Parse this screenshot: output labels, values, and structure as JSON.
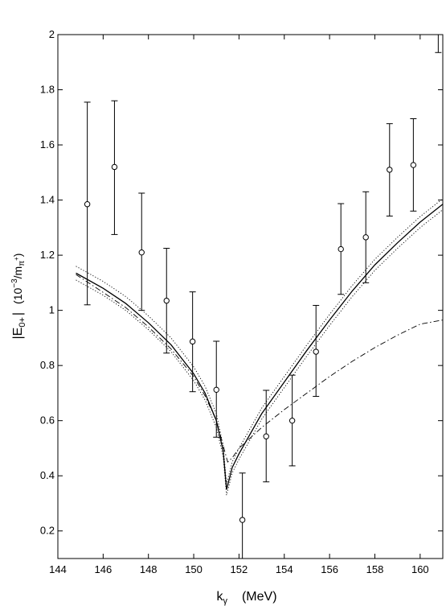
{
  "chart_data": {
    "type": "scatter",
    "title": "",
    "xlabel": {
      "main": "k",
      "sub": "γ",
      "unit": "(MeV)"
    },
    "ylabel": {
      "main": "|E",
      "sub": "0+",
      "mid": "|",
      "unit_a": "(10",
      "unit_exp": "−3",
      "unit_b": "/m",
      "unit_sub": "π",
      "unit_sup": "+",
      "unit_close": ")"
    },
    "xlim": [
      144,
      161
    ],
    "ylim": [
      0.1,
      2.0
    ],
    "grid": false,
    "xticks": [
      "144",
      "146",
      "148",
      "150",
      "152",
      "154",
      "156",
      "158",
      "160"
    ],
    "yticks": [
      "0.2",
      "0.4",
      "0.6",
      "0.8",
      "1",
      "1.2",
      "1.4",
      "1.6",
      "1.8",
      "2"
    ],
    "points": [
      {
        "x": 145.3,
        "y": 1.385,
        "lo": 1.02,
        "hi": 1.755
      },
      {
        "x": 146.5,
        "y": 1.52,
        "lo": 1.275,
        "hi": 1.76
      },
      {
        "x": 147.7,
        "y": 1.21,
        "lo": 1.0,
        "hi": 1.425
      },
      {
        "x": 148.8,
        "y": 1.035,
        "lo": 0.845,
        "hi": 1.225
      },
      {
        "x": 149.95,
        "y": 0.887,
        "lo": 0.705,
        "hi": 1.067
      },
      {
        "x": 151.0,
        "y": 0.712,
        "lo": 0.54,
        "hi": 0.888
      },
      {
        "x": 152.15,
        "y": 0.24,
        "lo": 0.07,
        "hi": 0.41
      },
      {
        "x": 153.2,
        "y": 0.543,
        "lo": 0.378,
        "hi": 0.71
      },
      {
        "x": 154.35,
        "y": 0.6,
        "lo": 0.436,
        "hi": 0.765
      },
      {
        "x": 155.4,
        "y": 0.85,
        "lo": 0.688,
        "hi": 1.018
      },
      {
        "x": 156.5,
        "y": 1.222,
        "lo": 1.058,
        "hi": 1.387
      },
      {
        "x": 157.6,
        "y": 1.265,
        "lo": 1.1,
        "hi": 1.43
      },
      {
        "x": 158.65,
        "y": 1.51,
        "lo": 1.342,
        "hi": 1.677
      },
      {
        "x": 159.7,
        "y": 1.527,
        "lo": 1.36,
        "hi": 1.695
      },
      {
        "x": 160.8,
        "y": 2.1,
        "lo": 1.935,
        "hi": 2.27
      }
    ],
    "series": [
      {
        "style": "solid",
        "x": [
          144.8,
          146,
          147,
          148,
          149,
          150,
          150.5,
          151,
          151.3,
          151.45,
          151.7,
          152,
          153,
          154,
          155,
          156,
          157,
          158,
          159,
          160,
          161
        ],
        "y": [
          1.135,
          1.08,
          1.025,
          0.955,
          0.875,
          0.77,
          0.7,
          0.6,
          0.49,
          0.35,
          0.43,
          0.48,
          0.625,
          0.74,
          0.855,
          0.965,
          1.07,
          1.165,
          1.245,
          1.32,
          1.385
        ]
      },
      {
        "style": "dotted",
        "x": [
          144.8,
          146,
          147,
          148,
          149,
          150,
          150.5,
          151,
          151.3,
          151.45,
          151.7,
          152,
          153,
          154,
          155,
          156,
          157,
          158,
          159,
          160,
          161
        ],
        "y": [
          1.16,
          1.105,
          1.05,
          0.98,
          0.9,
          0.795,
          0.725,
          0.625,
          0.51,
          0.37,
          0.45,
          0.5,
          0.645,
          0.76,
          0.875,
          0.985,
          1.09,
          1.185,
          1.265,
          1.34,
          1.405
        ]
      },
      {
        "style": "dotted",
        "x": [
          144.8,
          146,
          147,
          148,
          149,
          150,
          150.5,
          151,
          151.3,
          151.45,
          151.7,
          152,
          153,
          154,
          155,
          156,
          157,
          158,
          159,
          160,
          161
        ],
        "y": [
          1.11,
          1.055,
          1.0,
          0.93,
          0.85,
          0.745,
          0.675,
          0.575,
          0.47,
          0.33,
          0.41,
          0.46,
          0.605,
          0.72,
          0.835,
          0.945,
          1.05,
          1.145,
          1.225,
          1.3,
          1.365
        ]
      },
      {
        "style": "dashdot",
        "x": [
          144.8,
          146,
          147,
          148,
          149,
          150,
          150.5,
          151,
          151.3,
          151.5,
          151.7,
          152,
          153,
          154,
          155,
          156,
          157,
          158,
          159,
          160,
          161
        ],
        "y": [
          1.13,
          1.065,
          1.01,
          0.94,
          0.86,
          0.76,
          0.69,
          0.6,
          0.51,
          0.45,
          0.465,
          0.5,
          0.575,
          0.64,
          0.7,
          0.76,
          0.815,
          0.865,
          0.91,
          0.95,
          0.965
        ]
      }
    ]
  }
}
